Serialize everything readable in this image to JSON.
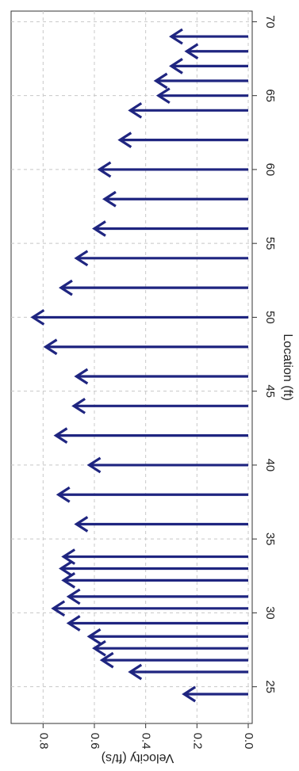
{
  "chart_data": {
    "type": "bar",
    "orientation": "rotated-90-clockwise",
    "title": "",
    "xlabel": "Location (ft)",
    "ylabel": "Velocity (ft/s)",
    "xlim": [
      23.5,
      71.5
    ],
    "ylim": [
      0,
      0.9
    ],
    "xticks": [
      25,
      30,
      35,
      40,
      45,
      50,
      55,
      60,
      65,
      70
    ],
    "yticks": [
      0.0,
      0.2,
      0.4,
      0.6,
      0.8
    ],
    "ytick_labels": [
      "0.0",
      "0.2",
      "0.4",
      "0.6",
      "0.8"
    ],
    "grid": true,
    "marker": "arrow",
    "color": "#1f2580",
    "series": [
      {
        "points": [
          {
            "x": 24.5,
            "y": 0.25
          },
          {
            "x": 26,
            "y": 0.46
          },
          {
            "x": 26.8,
            "y": 0.57
          },
          {
            "x": 27.6,
            "y": 0.6
          },
          {
            "x": 28.4,
            "y": 0.62
          },
          {
            "x": 29.3,
            "y": 0.7
          },
          {
            "x": 30.3,
            "y": 0.76
          },
          {
            "x": 31.1,
            "y": 0.7
          },
          {
            "x": 32.2,
            "y": 0.72
          },
          {
            "x": 33,
            "y": 0.73
          },
          {
            "x": 33.8,
            "y": 0.72
          },
          {
            "x": 36,
            "y": 0.67
          },
          {
            "x": 38,
            "y": 0.74
          },
          {
            "x": 40,
            "y": 0.62
          },
          {
            "x": 42,
            "y": 0.75
          },
          {
            "x": 44,
            "y": 0.68
          },
          {
            "x": 46,
            "y": 0.67
          },
          {
            "x": 48,
            "y": 0.79
          },
          {
            "x": 50,
            "y": 0.84
          },
          {
            "x": 52,
            "y": 0.73
          },
          {
            "x": 54,
            "y": 0.67
          },
          {
            "x": 56,
            "y": 0.6
          },
          {
            "x": 58,
            "y": 0.56
          },
          {
            "x": 60,
            "y": 0.58
          },
          {
            "x": 62,
            "y": 0.5
          },
          {
            "x": 64,
            "y": 0.46
          },
          {
            "x": 65,
            "y": 0.35
          },
          {
            "x": 66,
            "y": 0.36
          },
          {
            "x": 67,
            "y": 0.3
          },
          {
            "x": 68,
            "y": 0.24
          },
          {
            "x": 69,
            "y": 0.3
          }
        ]
      }
    ]
  }
}
